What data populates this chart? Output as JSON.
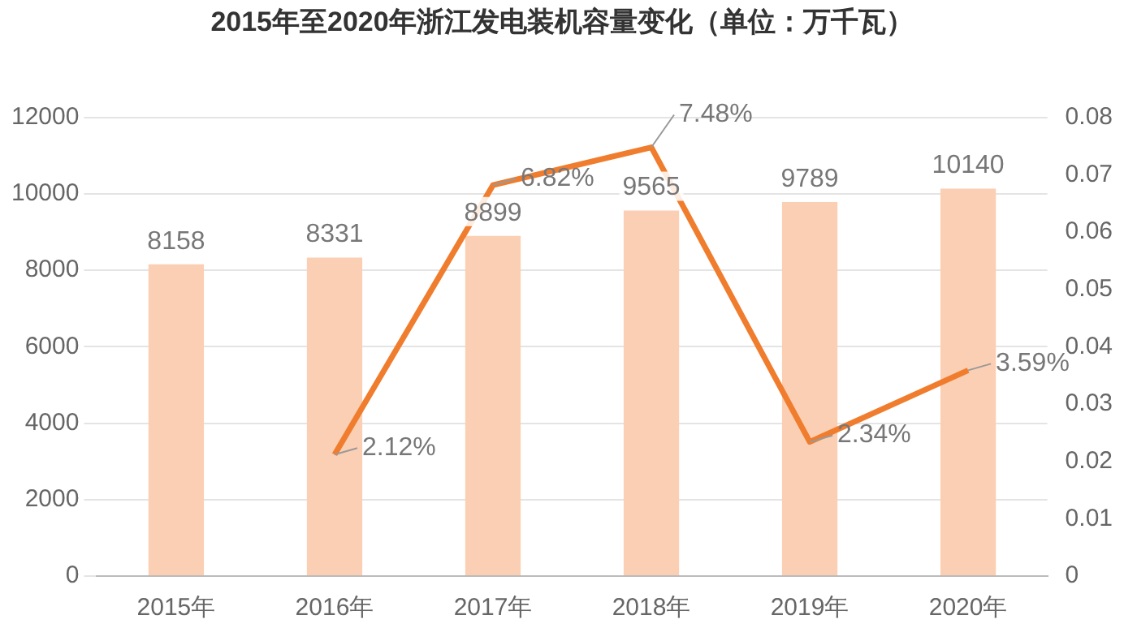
{
  "chart_data": {
    "type": "bar",
    "title": "2015年至2020年浙江发电装机容量变化（单位：万千瓦）",
    "categories": [
      "2015年",
      "2016年",
      "2017年",
      "2018年",
      "2019年",
      "2020年"
    ],
    "series": [
      {
        "color": "#fbcfb3",
        "values": [
          8158,
          8331,
          8899,
          9565,
          9789,
          10140
        ],
        "value_labels": [
          "8158",
          "8331",
          "8899",
          "9565",
          "9789",
          "10140"
        ]
      },
      {
        "type": "line",
        "axis": "y2",
        "color": "#f07d2e",
        "values": [
          null,
          0.0212,
          0.0682,
          0.0748,
          0.0234,
          0.0359
        ],
        "value_labels": [
          null,
          "2.12%",
          "6.82%",
          "7.48%",
          "2.34%",
          "3.59%"
        ]
      }
    ],
    "ylim": [
      0,
      12000
    ],
    "yticks": [
      0,
      2000,
      4000,
      6000,
      8000,
      10000,
      12000
    ],
    "y2lim": [
      0,
      0.08
    ],
    "y2ticks": [
      0,
      0.01,
      0.02,
      0.03,
      0.04,
      0.05,
      0.06,
      0.07,
      0.08
    ],
    "grid": "y",
    "legend": false,
    "marker": "none"
  }
}
